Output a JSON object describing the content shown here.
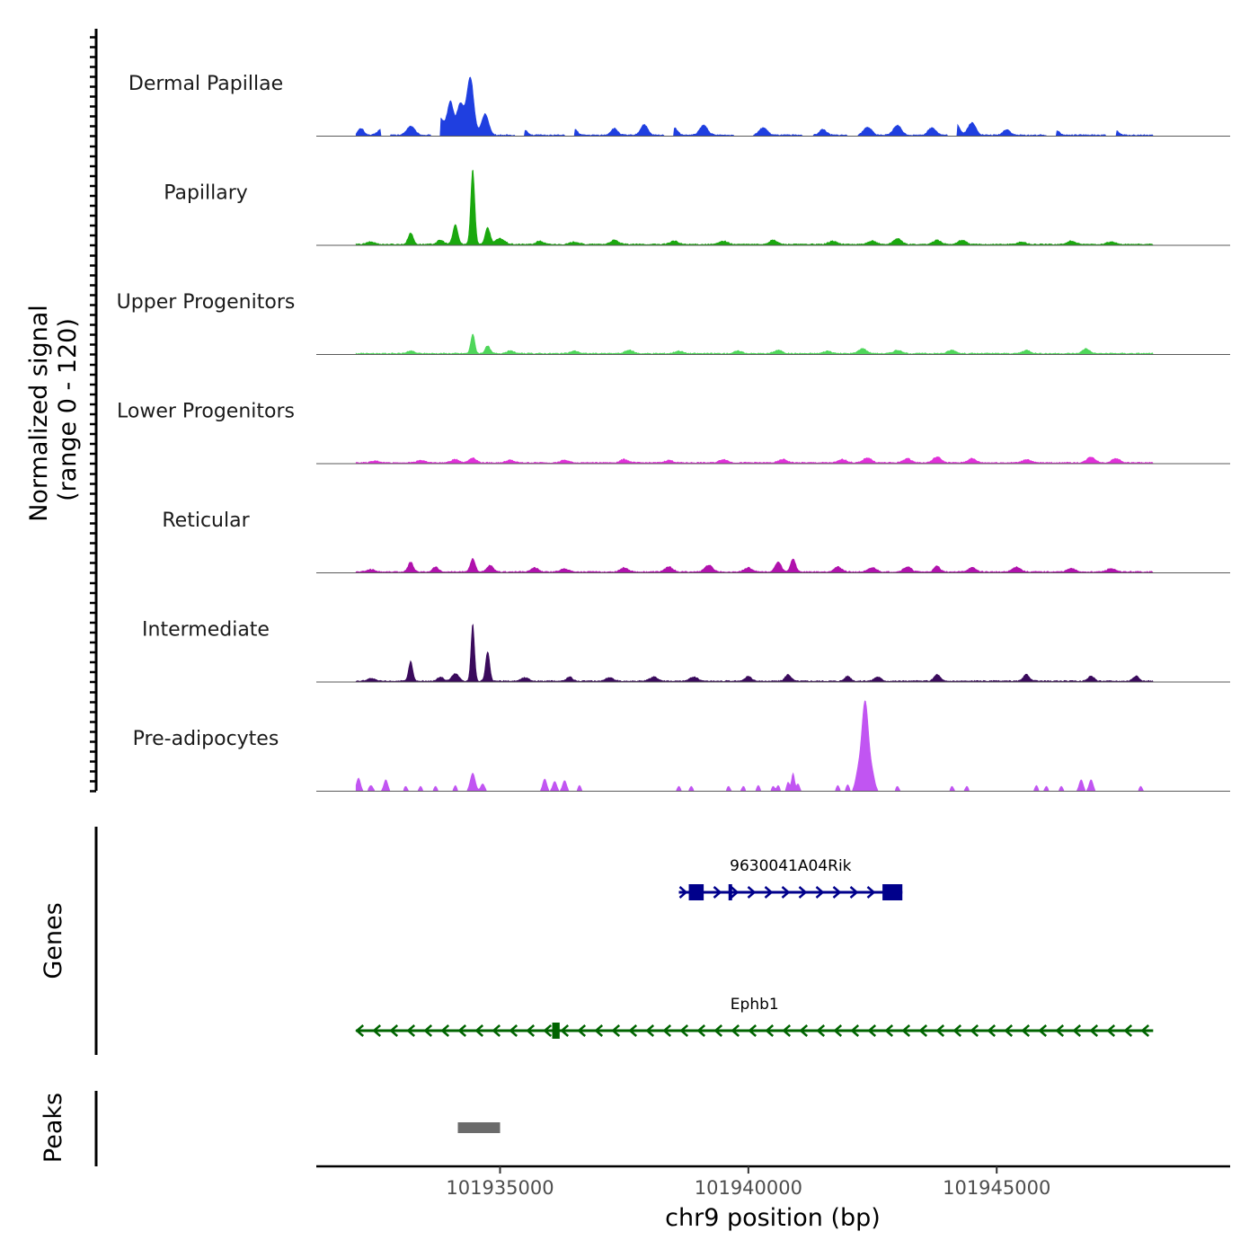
{
  "chart_data": {
    "type": "area",
    "title": "",
    "xlabel": "chr9 position (bp)",
    "ylabel_line1": "Normalized signal",
    "ylabel_line2": "(range 0 - 120)",
    "genes_label": "Genes",
    "peaks_label": "Peaks",
    "xlim": [
      101931300,
      101949700
    ],
    "ylim": [
      0,
      120
    ],
    "x_ticks": [
      {
        "value": 101935000,
        "label": "101935000"
      },
      {
        "value": 101940000,
        "label": "101940000"
      },
      {
        "value": 101945000,
        "label": "101945000"
      }
    ],
    "region": [
      101932100,
      101948150
    ],
    "tracks": [
      {
        "name": "Dermal Papillae",
        "color": "#1f3fe0",
        "peaks": [
          [
            101932200,
            8,
            60
          ],
          [
            101932600,
            7,
            70
          ],
          [
            101933200,
            11,
            80
          ],
          [
            101933800,
            20,
            80
          ],
          [
            101934000,
            40,
            60
          ],
          [
            101934200,
            38,
            70
          ],
          [
            101934400,
            70,
            70
          ],
          [
            101934700,
            26,
            70
          ],
          [
            101935500,
            6,
            60
          ],
          [
            101936500,
            7,
            60
          ],
          [
            101937300,
            8,
            70
          ],
          [
            101937900,
            13,
            70
          ],
          [
            101938500,
            9,
            70
          ],
          [
            101939100,
            12,
            80
          ],
          [
            101940300,
            9,
            80
          ],
          [
            101941500,
            7,
            70
          ],
          [
            101942400,
            10,
            80
          ],
          [
            101943000,
            12,
            80
          ],
          [
            101943700,
            9,
            80
          ],
          [
            101944200,
            13,
            60
          ],
          [
            101944500,
            15,
            80
          ],
          [
            101945200,
            7,
            70
          ],
          [
            101946200,
            6,
            60
          ],
          [
            101947400,
            5,
            60
          ]
        ],
        "gaps": [
          [
            101932600,
            101932800
          ],
          [
            101933600,
            101933800
          ],
          [
            101935300,
            101935500
          ],
          [
            101936300,
            101936500
          ],
          [
            101938300,
            101938500
          ],
          [
            101939700,
            101940100
          ],
          [
            101941100,
            101941300
          ],
          [
            101942000,
            101942200
          ],
          [
            101944000,
            101944200
          ],
          [
            101946000,
            101946200
          ],
          [
            101947200,
            101947400
          ]
        ]
      },
      {
        "name": "Papillary",
        "color": "#1aa80e",
        "peaks": [
          [
            101932400,
            3,
            80
          ],
          [
            101933200,
            14,
            50
          ],
          [
            101933800,
            5,
            70
          ],
          [
            101934100,
            24,
            50
          ],
          [
            101934450,
            92,
            40
          ],
          [
            101934750,
            20,
            50
          ],
          [
            101935000,
            7,
            90
          ],
          [
            101935800,
            4,
            70
          ],
          [
            101936500,
            3,
            80
          ],
          [
            101937300,
            5,
            80
          ],
          [
            101938500,
            4,
            80
          ],
          [
            101939500,
            4,
            80
          ],
          [
            101940500,
            5,
            80
          ],
          [
            101941700,
            4,
            80
          ],
          [
            101942500,
            4,
            80
          ],
          [
            101943000,
            7,
            80
          ],
          [
            101943800,
            5,
            80
          ],
          [
            101944300,
            5,
            80
          ],
          [
            101945500,
            3,
            80
          ],
          [
            101946500,
            4,
            80
          ],
          [
            101947300,
            3,
            80
          ]
        ],
        "gaps": []
      },
      {
        "name": "Upper Progenitors",
        "color": "#4fd65a",
        "peaks": [
          [
            101933200,
            3,
            70
          ],
          [
            101934450,
            24,
            40
          ],
          [
            101934750,
            9,
            50
          ],
          [
            101935200,
            3,
            80
          ],
          [
            101936500,
            3,
            80
          ],
          [
            101937600,
            4,
            80
          ],
          [
            101938600,
            3,
            80
          ],
          [
            101939800,
            3,
            80
          ],
          [
            101940600,
            4,
            80
          ],
          [
            101941600,
            3,
            80
          ],
          [
            101942300,
            6,
            80
          ],
          [
            101943000,
            4,
            80
          ],
          [
            101944100,
            4,
            80
          ],
          [
            101945600,
            4,
            80
          ],
          [
            101946800,
            6,
            70
          ]
        ],
        "gaps": []
      },
      {
        "name": "Lower Progenitors",
        "color": "#e030d8",
        "peaks": [
          [
            101932500,
            2,
            80
          ],
          [
            101933400,
            3,
            80
          ],
          [
            101934100,
            4,
            80
          ],
          [
            101934450,
            6,
            70
          ],
          [
            101935200,
            3,
            80
          ],
          [
            101936300,
            3,
            80
          ],
          [
            101937500,
            4,
            80
          ],
          [
            101938400,
            3,
            80
          ],
          [
            101939500,
            4,
            80
          ],
          [
            101940700,
            4,
            80
          ],
          [
            101941900,
            4,
            80
          ],
          [
            101942400,
            6,
            80
          ],
          [
            101943200,
            5,
            80
          ],
          [
            101943800,
            7,
            80
          ],
          [
            101944500,
            5,
            80
          ],
          [
            101945600,
            4,
            80
          ],
          [
            101946900,
            7,
            80
          ],
          [
            101947400,
            5,
            80
          ]
        ],
        "gaps": []
      },
      {
        "name": "Reticular",
        "color": "#b012ac",
        "peaks": [
          [
            101932400,
            3,
            80
          ],
          [
            101933200,
            12,
            50
          ],
          [
            101933700,
            6,
            60
          ],
          [
            101934450,
            16,
            50
          ],
          [
            101934800,
            8,
            60
          ],
          [
            101935700,
            5,
            70
          ],
          [
            101936300,
            4,
            80
          ],
          [
            101937500,
            5,
            80
          ],
          [
            101938400,
            6,
            80
          ],
          [
            101939200,
            8,
            80
          ],
          [
            101940000,
            5,
            80
          ],
          [
            101940600,
            12,
            60
          ],
          [
            101940900,
            16,
            50
          ],
          [
            101941800,
            6,
            80
          ],
          [
            101942500,
            5,
            80
          ],
          [
            101943200,
            6,
            80
          ],
          [
            101943800,
            7,
            60
          ],
          [
            101944500,
            5,
            80
          ],
          [
            101945400,
            6,
            80
          ],
          [
            101946500,
            4,
            80
          ],
          [
            101947300,
            4,
            80
          ]
        ],
        "gaps": []
      },
      {
        "name": "Intermediate",
        "color": "#3a0a5c",
        "peaks": [
          [
            101932400,
            3,
            80
          ],
          [
            101933200,
            24,
            40
          ],
          [
            101933800,
            5,
            60
          ],
          [
            101934100,
            9,
            70
          ],
          [
            101934450,
            70,
            35
          ],
          [
            101934750,
            36,
            40
          ],
          [
            101935500,
            4,
            80
          ],
          [
            101936400,
            5,
            60
          ],
          [
            101937200,
            4,
            80
          ],
          [
            101938100,
            5,
            80
          ],
          [
            101938900,
            5,
            80
          ],
          [
            101940000,
            6,
            60
          ],
          [
            101940800,
            8,
            60
          ],
          [
            101942000,
            6,
            60
          ],
          [
            101942600,
            5,
            70
          ],
          [
            101943800,
            8,
            60
          ],
          [
            101945600,
            8,
            60
          ],
          [
            101946900,
            6,
            60
          ],
          [
            101947800,
            6,
            60
          ]
        ],
        "gaps": []
      },
      {
        "name": "Pre-adipocytes",
        "color": "#c155f2",
        "peaks": [
          [
            101932150,
            16,
            40
          ],
          [
            101932400,
            7,
            40
          ],
          [
            101932700,
            14,
            40
          ],
          [
            101933100,
            6,
            30
          ],
          [
            101933400,
            6,
            30
          ],
          [
            101933700,
            6,
            30
          ],
          [
            101934100,
            7,
            30
          ],
          [
            101934450,
            22,
            50
          ],
          [
            101934650,
            9,
            40
          ],
          [
            101935900,
            15,
            40
          ],
          [
            101936100,
            12,
            40
          ],
          [
            101936300,
            13,
            40
          ],
          [
            101936600,
            7,
            30
          ],
          [
            101938600,
            6,
            30
          ],
          [
            101938850,
            6,
            30
          ],
          [
            101939600,
            6,
            30
          ],
          [
            101939900,
            6,
            30
          ],
          [
            101940200,
            7,
            30
          ],
          [
            101940500,
            6,
            30
          ],
          [
            101940600,
            7,
            30
          ],
          [
            101940800,
            11,
            30
          ],
          [
            101940900,
            22,
            30
          ],
          [
            101941000,
            9,
            30
          ],
          [
            101941800,
            7,
            30
          ],
          [
            101942000,
            8,
            30
          ],
          [
            101942200,
            18,
            50
          ],
          [
            101942350,
            110,
            70
          ],
          [
            101942500,
            16,
            50
          ],
          [
            101942700,
            8,
            30
          ],
          [
            101943000,
            6,
            30
          ],
          [
            101944100,
            6,
            30
          ],
          [
            101944400,
            6,
            30
          ],
          [
            101945800,
            7,
            30
          ],
          [
            101946000,
            6,
            30
          ],
          [
            101946300,
            6,
            30
          ],
          [
            101946700,
            14,
            40
          ],
          [
            101946900,
            14,
            40
          ],
          [
            101947900,
            6,
            30
          ]
        ],
        "gaps": [
          [
            101932850,
            101933050
          ],
          [
            101933250,
            101933350
          ],
          [
            101933550,
            101933650
          ],
          [
            101933850,
            101934000
          ],
          [
            101934800,
            101935800
          ],
          [
            101936750,
            101938500
          ],
          [
            101939000,
            101939500
          ],
          [
            101941100,
            101941700
          ],
          [
            101942600,
            101942900
          ],
          [
            101943150,
            101944000
          ],
          [
            101944550,
            101945700
          ],
          [
            101947050,
            101947800
          ]
        ]
      }
    ],
    "genes": [
      {
        "name": "9630041A04Rik",
        "color": "#00008b",
        "strand": "+",
        "start": 101938600,
        "end": 101943100,
        "exons": [
          [
            101938800,
            101939100
          ],
          [
            101939600,
            101939650
          ],
          [
            101942700,
            101943100
          ]
        ]
      },
      {
        "name": "Ephb1",
        "color": "#006400",
        "strand": "-",
        "start": 101932100,
        "end": 101948150,
        "exons": [
          [
            101936050,
            101936200
          ]
        ]
      }
    ],
    "peaks": [
      [
        101934150,
        101935000
      ]
    ]
  }
}
